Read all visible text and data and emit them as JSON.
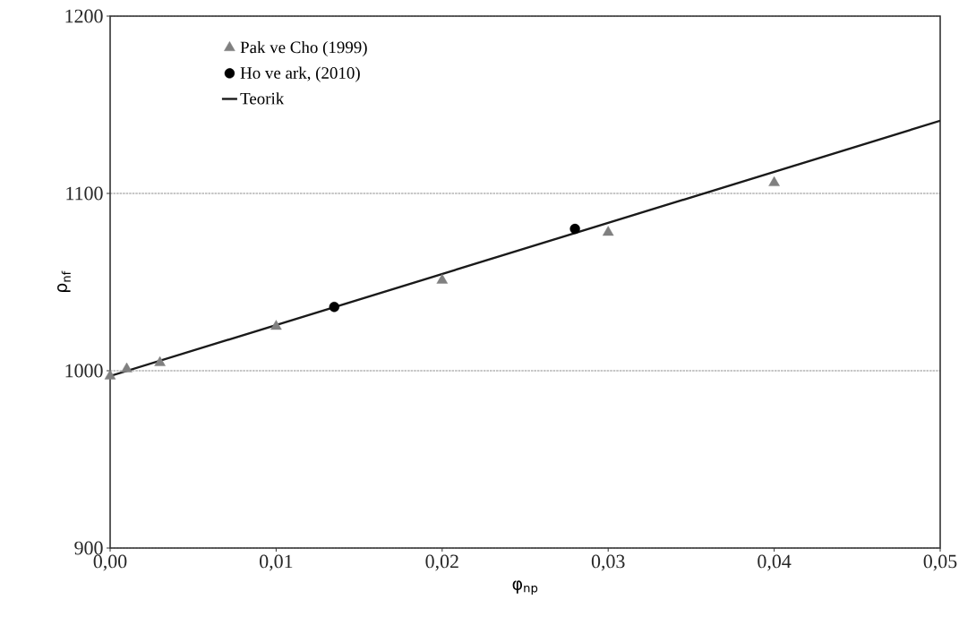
{
  "chart_data": {
    "type": "scatter",
    "xlabel": "φ$_{np}$",
    "ylabel": "ρ$_{nf}$",
    "xlim": [
      0,
      0.05
    ],
    "ylim": [
      900,
      1200
    ],
    "xticks": [
      {
        "value": 0,
        "label": "0,00"
      },
      {
        "value": 0.01,
        "label": "0,01"
      },
      {
        "value": 0.02,
        "label": "0,02"
      },
      {
        "value": 0.03,
        "label": "0,03"
      },
      {
        "value": 0.04,
        "label": "0,04"
      },
      {
        "value": 0.05,
        "label": "0,05"
      }
    ],
    "yticks": [
      900,
      1000,
      1100,
      1200
    ],
    "grid": "y",
    "legend": "top left",
    "series": [
      {
        "name": "Pak ve Cho (1999)",
        "marker": "triangle",
        "color": "#808080",
        "x": [
          0,
          0.001,
          0.003,
          0.01,
          0.02,
          0.03,
          0.04
        ],
        "values": [
          997,
          1001,
          1004.5,
          1025,
          1051,
          1078,
          1106
        ]
      },
      {
        "name": "Ho ve ark, (2010)",
        "marker": "circle",
        "color": "#000000",
        "x": [
          0.0135,
          0.028
        ],
        "values": [
          1036,
          1080
        ]
      },
      {
        "name": "Teorik",
        "type": "line",
        "marker": "none",
        "line_style": "solid",
        "color": "#1a1a1a",
        "x": [
          0,
          0.05
        ],
        "values": [
          997,
          1141
        ]
      }
    ]
  }
}
